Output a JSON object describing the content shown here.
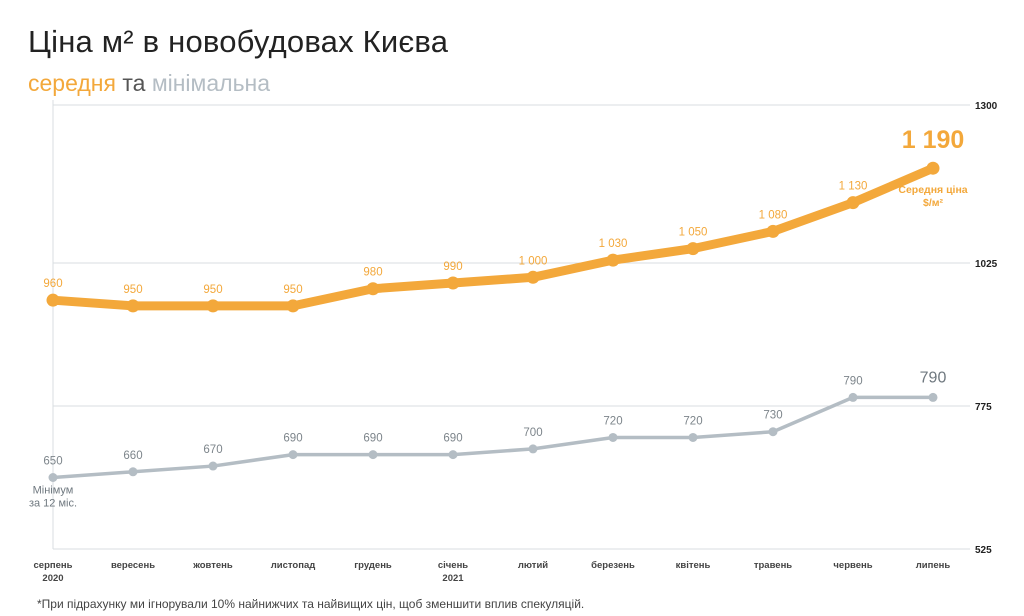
{
  "title": "Ціна м² в новобудовах Києва",
  "subtitle": {
    "avg": "середня",
    "join": "та",
    "min": "мінімальна"
  },
  "footnote": "*При підрахунку ми ігнорували 10% найнижчих та найвищих цін, щоб зменшити вплив спекуляцій.",
  "colors": {
    "average": "#f3a83b",
    "minimum": "#b4bdc4",
    "grid": "#d9dde0",
    "label": "#555555"
  },
  "chart_data": {
    "type": "line",
    "categories": [
      [
        "серпень",
        "2020"
      ],
      [
        "вересень"
      ],
      [
        "жовтень"
      ],
      [
        "листопад"
      ],
      [
        "грудень"
      ],
      [
        "січень",
        "2021"
      ],
      [
        "лютий"
      ],
      [
        "березень"
      ],
      [
        "квітень"
      ],
      [
        "травень"
      ],
      [
        "червень"
      ],
      [
        "липень"
      ]
    ],
    "y_ticks": [
      {
        "value": 1300,
        "label": "1300"
      },
      {
        "value": 1025,
        "label": "1025"
      },
      {
        "value": 775,
        "label": "775"
      },
      {
        "value": 525,
        "label": "525"
      }
    ],
    "y_axis_side": "right",
    "grid": true,
    "series": [
      {
        "key": "average",
        "values": [
          960,
          950,
          950,
          950,
          980,
          990,
          1000,
          1030,
          1050,
          1080,
          1130,
          1190
        ],
        "labels": [
          "960",
          "950",
          "950",
          "950",
          "980",
          "990",
          "1 000",
          "1 030",
          "1 050",
          "1 080",
          "1 130",
          "1 190"
        ],
        "end_annotation": [
          "Середня ціна",
          "$/м²"
        ]
      },
      {
        "key": "minimum",
        "values": [
          650,
          660,
          670,
          690,
          690,
          690,
          700,
          720,
          720,
          730,
          790,
          790
        ],
        "labels": [
          "650",
          "660",
          "670",
          "690",
          "690",
          "690",
          "700",
          "720",
          "720",
          "730",
          "790",
          "790"
        ],
        "start_annotation": [
          "Мінімум",
          "за 12 міс."
        ]
      }
    ]
  }
}
